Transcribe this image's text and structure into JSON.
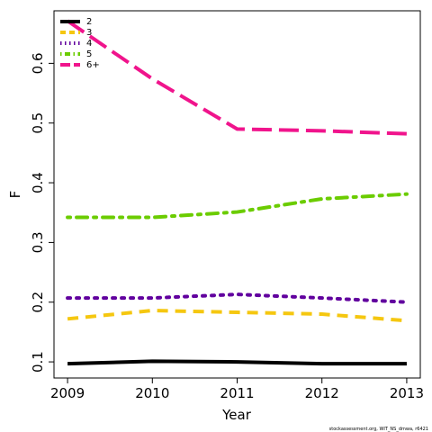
{
  "chart_data": {
    "type": "line",
    "x": [
      2009,
      2010,
      2011,
      2012,
      2013
    ],
    "xlim": [
      2008.84,
      2013.16
    ],
    "xticks": [
      2009,
      2010,
      2011,
      2012,
      2013
    ],
    "ylim": [
      0.073,
      0.688
    ],
    "yticks": [
      0.1,
      0.2,
      0.3,
      0.4,
      0.5,
      0.6
    ],
    "xlabel": "Year",
    "ylabel": "F",
    "footer": "stockassessment.org, WIT_NS_dmwa, r6421",
    "legend": "top-left",
    "series": [
      {
        "name": "2",
        "color": "#000000",
        "linestyle": "solid",
        "values": [
          0.097,
          0.101,
          0.1,
          0.097,
          0.097
        ]
      },
      {
        "name": "3",
        "color": "#f5c710",
        "linestyle": "dashed",
        "values": [
          0.172,
          0.186,
          0.183,
          0.18,
          0.169
        ]
      },
      {
        "name": "4",
        "color": "#61009e",
        "linestyle": "dotted",
        "values": [
          0.207,
          0.207,
          0.213,
          0.207,
          0.2
        ]
      },
      {
        "name": "5",
        "color": "#6bcc00",
        "linestyle": "dotdash",
        "values": [
          0.342,
          0.342,
          0.351,
          0.373,
          0.381
        ]
      },
      {
        "name": "6+",
        "color": "#f0148c",
        "linestyle": "longdash",
        "values": [
          0.671,
          0.574,
          0.49,
          0.487,
          0.482
        ]
      }
    ]
  }
}
